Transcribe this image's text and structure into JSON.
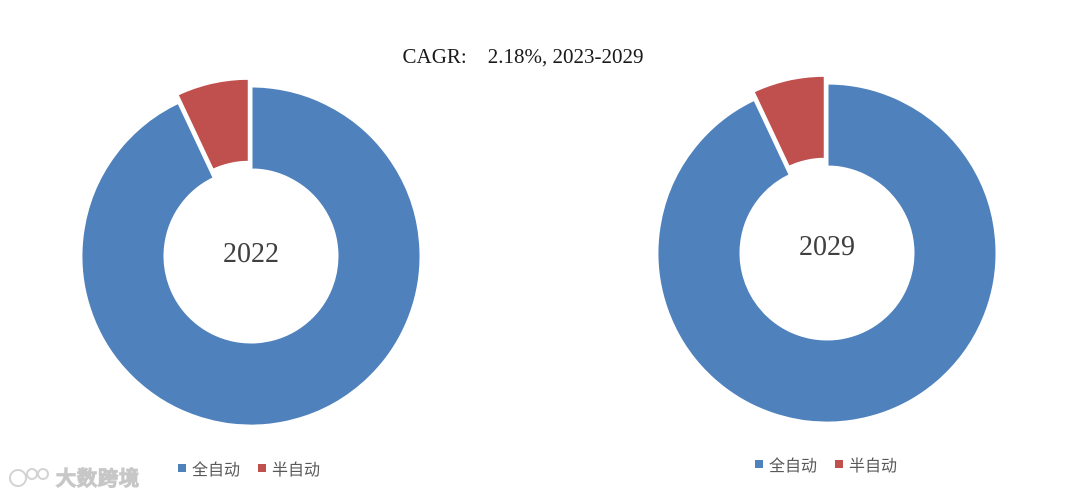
{
  "title": "CAGR:    2.18%, 2023-2029",
  "colors": {
    "full_auto": "#4F81BD",
    "semi_auto": "#C0504D"
  },
  "chart_data": [
    {
      "type": "pie",
      "variant": "donut",
      "center_label": "2022",
      "categories": [
        "全自动",
        "半自动"
      ],
      "values": [
        93,
        7
      ],
      "legend": [
        "全自动",
        "半自动"
      ],
      "legend_position": "bottom"
    },
    {
      "type": "pie",
      "variant": "donut",
      "center_label": "2029",
      "categories": [
        "全自动",
        "半自动"
      ],
      "values": [
        93,
        7
      ],
      "legend": [
        "全自动",
        "半自动"
      ],
      "legend_position": "bottom"
    }
  ],
  "watermark": {
    "text": "大数跨境",
    "icon": "logo-icon"
  }
}
